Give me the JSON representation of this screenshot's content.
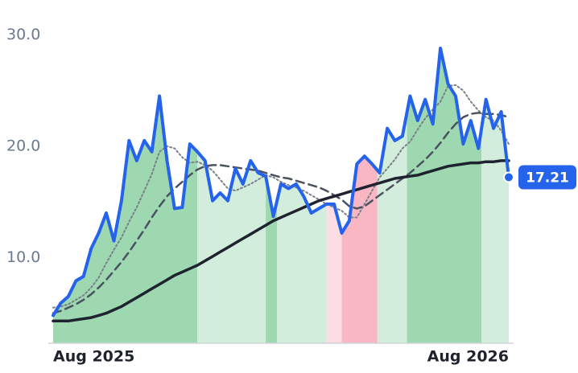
{
  "chart_data": {
    "type": "line",
    "categories": [
      "Aug 2025",
      null,
      null,
      null,
      null,
      null,
      null,
      null,
      null,
      null,
      null,
      null,
      null,
      null,
      null,
      null,
      null,
      null,
      null,
      null,
      null,
      null,
      null,
      null,
      null,
      null,
      null,
      null,
      null,
      null,
      null,
      null,
      null,
      null,
      null,
      null,
      null,
      null,
      null,
      null,
      null,
      null,
      null,
      null,
      null,
      null,
      null,
      null,
      null,
      null,
      null,
      null,
      null,
      null,
      null,
      null,
      null,
      null,
      null,
      null,
      "Aug 2026"
    ],
    "ylim": [
      2.3,
      33
    ],
    "yticks": [
      {
        "value": 10,
        "label": "10.0"
      },
      {
        "value": 20,
        "label": "20.0"
      },
      {
        "value": 30,
        "label": "30.0"
      }
    ],
    "regions": [
      {
        "start": 0,
        "end": 19,
        "color": "#9dd8b0"
      },
      {
        "start": 19,
        "end": 28,
        "color": "#d3eddc"
      },
      {
        "start": 28,
        "end": 29.5,
        "color": "#9dd8b0"
      },
      {
        "start": 29.5,
        "end": 36,
        "color": "#d3eddc"
      },
      {
        "start": 36,
        "end": 38,
        "color": "#fddde4"
      },
      {
        "start": 38,
        "end": 42.7,
        "color": "#f9b7c4"
      },
      {
        "start": 42.7,
        "end": 46.6,
        "color": "#d3eddc"
      },
      {
        "start": 46.6,
        "end": 56.4,
        "color": "#9dd8b0"
      },
      {
        "start": 56.4,
        "end": 60,
        "color": "#d3eddc"
      }
    ],
    "series": [
      {
        "color": "#7a7f8a",
        "style": "dotted",
        "width": 2,
        "values": [
          5.5,
          5.6,
          5.8,
          6.2,
          6.6,
          7.3,
          8.2,
          9.5,
          10.7,
          11.8,
          13.2,
          14.5,
          16.0,
          17.5,
          19.5,
          20.0,
          19.8,
          19.0,
          18.5,
          18.6,
          18.3,
          17.8,
          17.0,
          16.2,
          16.0,
          16.3,
          16.6,
          17.0,
          17.4,
          17.2,
          16.8,
          16.5,
          16.3,
          16.0,
          15.6,
          15.2,
          14.8,
          14.5,
          14.2,
          13.6,
          13.6,
          14.8,
          16.0,
          17.2,
          18.0,
          18.8,
          19.8,
          20.4,
          21.5,
          22.5,
          23.3,
          24.0,
          25.4,
          25.5,
          25.0,
          24.0,
          23.2,
          22.6,
          22.3,
          21.4,
          20.2
        ]
      },
      {
        "color": "#4a5160",
        "style": "dashed",
        "width": 2.5,
        "values": [
          5.0,
          5.2,
          5.5,
          5.8,
          6.2,
          6.7,
          7.3,
          8.0,
          8.8,
          9.6,
          10.5,
          11.5,
          12.5,
          13.6,
          14.6,
          15.5,
          16.2,
          16.8,
          17.4,
          17.9,
          18.2,
          18.3,
          18.3,
          18.2,
          18.1,
          18.0,
          17.9,
          17.8,
          17.6,
          17.4,
          17.2,
          17.1,
          16.9,
          16.7,
          16.5,
          16.3,
          16.0,
          15.6,
          15.2,
          14.6,
          14.4,
          14.6,
          15.1,
          15.6,
          16.1,
          16.6,
          17.1,
          17.6,
          18.2,
          18.8,
          19.5,
          20.3,
          21.2,
          22.0,
          22.6,
          22.9,
          23.0,
          22.9,
          22.9,
          22.8,
          22.6
        ]
      },
      {
        "color": "#1f2330",
        "style": "solid",
        "width": 3.5,
        "values": [
          4.3,
          4.3,
          4.3,
          4.4,
          4.5,
          4.6,
          4.8,
          5.0,
          5.3,
          5.6,
          6.0,
          6.4,
          6.8,
          7.2,
          7.6,
          8.0,
          8.4,
          8.7,
          9.0,
          9.3,
          9.7,
          10.1,
          10.5,
          10.9,
          11.3,
          11.7,
          12.1,
          12.5,
          12.9,
          13.3,
          13.6,
          13.9,
          14.2,
          14.5,
          14.8,
          15.1,
          15.3,
          15.5,
          15.7,
          15.9,
          16.1,
          16.3,
          16.5,
          16.7,
          16.9,
          17.1,
          17.2,
          17.3,
          17.4,
          17.6,
          17.8,
          18.0,
          18.2,
          18.3,
          18.4,
          18.5,
          18.5,
          18.6,
          18.6,
          18.7,
          18.7
        ]
      },
      {
        "color": "#2563eb",
        "style": "solid",
        "width": 4,
        "values": [
          4.8,
          5.9,
          6.5,
          7.9,
          8.3,
          10.8,
          12.2,
          14.0,
          11.5,
          15.1,
          20.5,
          18.7,
          20.5,
          19.5,
          24.5,
          18.7,
          14.4,
          14.5,
          20.2,
          19.5,
          18.7,
          15.1,
          15.8,
          15.1,
          18.0,
          16.6,
          18.7,
          17.6,
          17.3,
          13.7,
          16.6,
          16.2,
          16.6,
          15.5,
          14.0,
          14.4,
          14.8,
          14.8,
          12.2,
          13.3,
          18.4,
          19.1,
          18.4,
          17.6,
          21.6,
          20.5,
          20.9,
          24.5,
          22.3,
          24.2,
          22.0,
          28.8,
          25.6,
          24.5,
          20.2,
          22.3,
          19.8,
          24.2,
          21.6,
          23.1,
          17.21
        ],
        "value_labels": [
          null,
          null,
          null,
          null,
          null,
          null,
          null,
          null,
          null,
          null,
          null,
          null,
          null,
          null,
          null,
          null,
          null,
          null,
          null,
          null,
          null,
          null,
          null,
          null,
          null,
          null,
          null,
          null,
          null,
          null,
          null,
          null,
          null,
          null,
          null,
          null,
          null,
          null,
          null,
          null,
          null,
          null,
          null,
          null,
          null,
          null,
          null,
          null,
          null,
          null,
          null,
          null,
          null,
          null,
          null,
          null,
          null,
          null,
          null,
          null,
          "17.21"
        ],
        "area_fill": true
      }
    ]
  }
}
